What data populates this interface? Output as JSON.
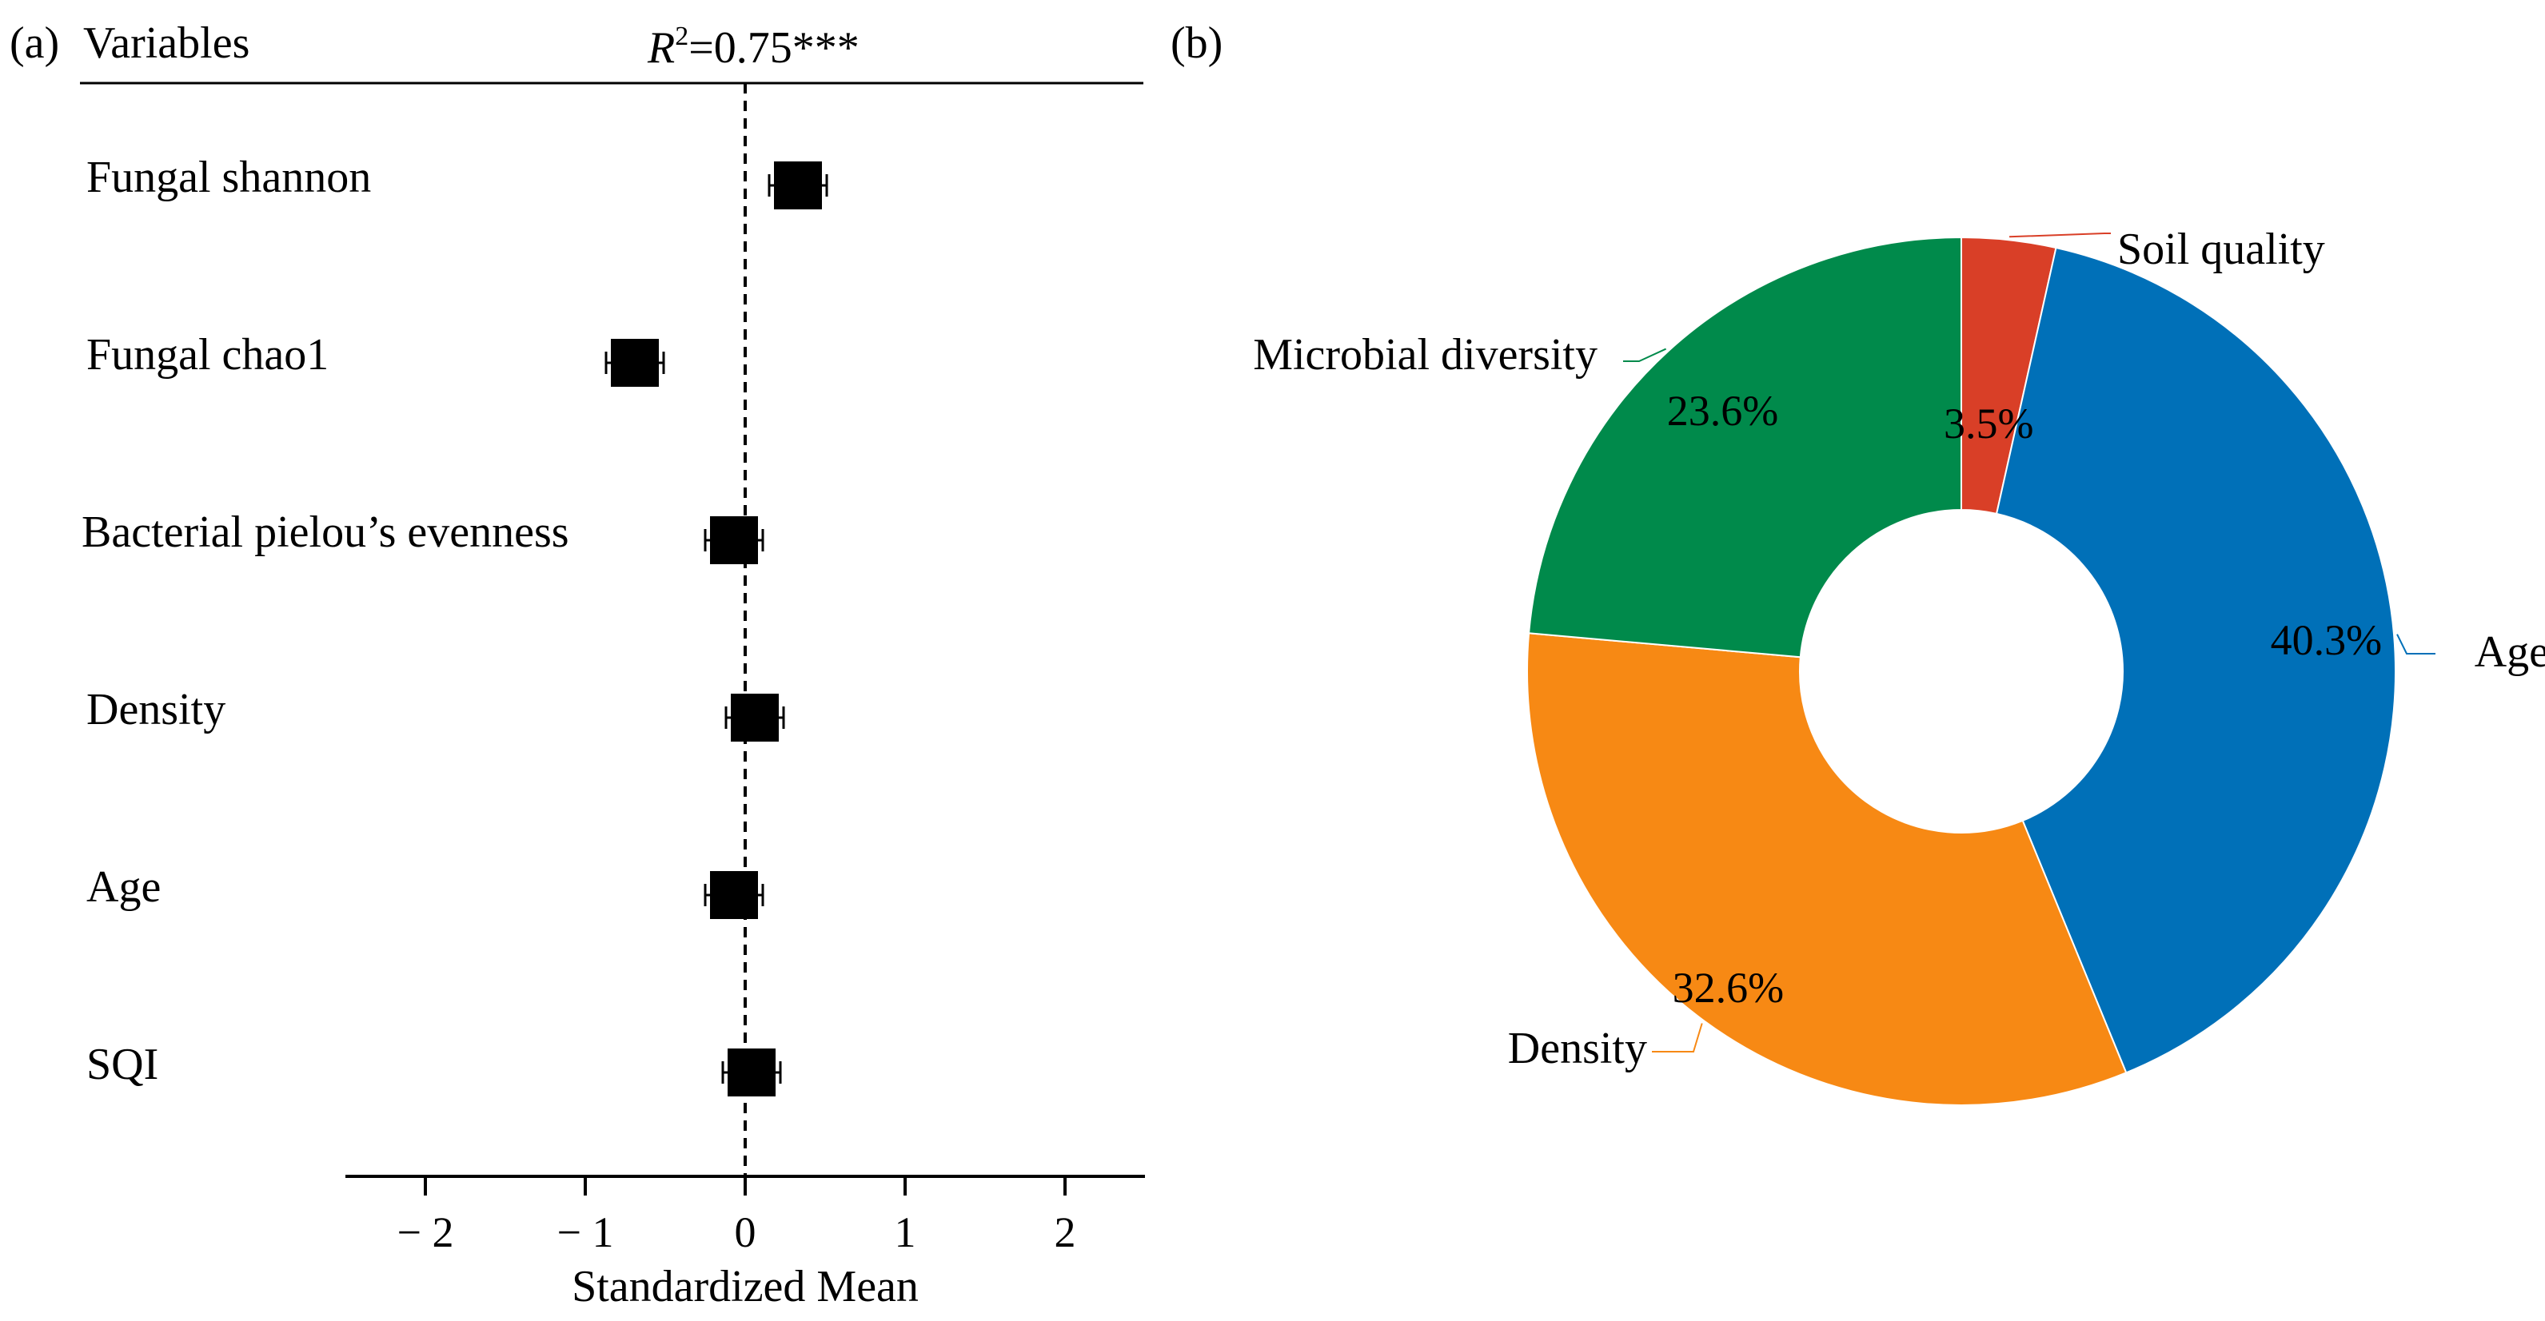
{
  "chart_data": [
    {
      "type": "forest",
      "panel_label": "(a)",
      "header": "Variables",
      "r2_label": "=0.75***",
      "r2_symbol": "R",
      "r2_superscript": "2",
      "xlabel": "Standardized Mean",
      "xlim": [
        -2.5,
        2.5
      ],
      "xticks": [
        -2,
        -1,
        0,
        1,
        2
      ],
      "xtick_labels": [
        "− 2",
        "− 1",
        "0",
        "1",
        "2"
      ],
      "reference_line": 0,
      "variables": [
        {
          "name": "Fungal shannon",
          "mean": 0.33,
          "lower": 0.15,
          "upper": 0.51
        },
        {
          "name": "Fungal chao1",
          "mean": -0.69,
          "lower": -0.87,
          "upper": -0.51
        },
        {
          "name": "Bacterial pielou’s evenness",
          "mean": -0.07,
          "lower": -0.25,
          "upper": 0.11
        },
        {
          "name": "Density",
          "mean": 0.06,
          "lower": -0.12,
          "upper": 0.24
        },
        {
          "name": "Age",
          "mean": -0.07,
          "lower": -0.25,
          "upper": 0.11
        },
        {
          "name": "SQI",
          "mean": 0.04,
          "lower": -0.14,
          "upper": 0.22
        }
      ]
    },
    {
      "type": "pie",
      "variant": "donut",
      "panel_label": "(b)",
      "slices": [
        {
          "name": "Soil quality",
          "value": 3.5,
          "label": "3.5%",
          "color": "#D93F27"
        },
        {
          "name": "Age",
          "value": 40.3,
          "label": "40.3%",
          "color": "#0070B8"
        },
        {
          "name": "Density",
          "value": 32.6,
          "label": "32.6%",
          "color": "#F78914"
        },
        {
          "name": "Microbial diversity",
          "value": 23.6,
          "label": "23.6%",
          "color": "#008A4B"
        }
      ]
    }
  ]
}
